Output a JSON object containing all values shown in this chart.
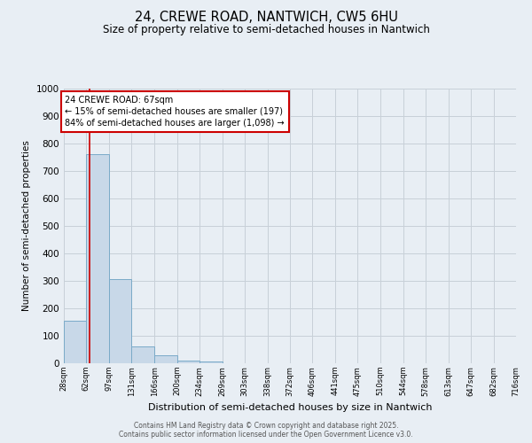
{
  "title": "24, CREWE ROAD, NANTWICH, CW5 6HU",
  "subtitle": "Size of property relative to semi-detached houses in Nantwich",
  "xlabel": "Distribution of semi-detached houses by size in Nantwich",
  "ylabel": "Number of semi-detached properties",
  "bins": [
    "28sqm",
    "62sqm",
    "97sqm",
    "131sqm",
    "166sqm",
    "200sqm",
    "234sqm",
    "269sqm",
    "303sqm",
    "338sqm",
    "372sqm",
    "406sqm",
    "441sqm",
    "475sqm",
    "510sqm",
    "544sqm",
    "578sqm",
    "613sqm",
    "647sqm",
    "682sqm",
    "716sqm"
  ],
  "bin_edges": [
    28,
    62,
    97,
    131,
    166,
    200,
    234,
    269,
    303,
    338,
    372,
    406,
    441,
    475,
    510,
    544,
    578,
    613,
    647,
    682,
    716
  ],
  "bar_heights": [
    155,
    760,
    305,
    60,
    30,
    10,
    5,
    0,
    0,
    0,
    0,
    0,
    0,
    0,
    0,
    0,
    0,
    0,
    0,
    0
  ],
  "bar_color": "#c8d8e8",
  "bar_edge_color": "#7aaac8",
  "grid_color": "#c8d0d8",
  "background_color": "#e8eef4",
  "property_size": 67,
  "red_line_color": "#cc0000",
  "annotation_text": "24 CREWE ROAD: 67sqm\n← 15% of semi-detached houses are smaller (197)\n84% of semi-detached houses are larger (1,098) →",
  "annotation_box_color": "#ffffff",
  "annotation_box_edge": "#cc0000",
  "ylim": [
    0,
    1000
  ],
  "yticks": [
    0,
    100,
    200,
    300,
    400,
    500,
    600,
    700,
    800,
    900,
    1000
  ],
  "footer_line1": "Contains HM Land Registry data © Crown copyright and database right 2025.",
  "footer_line2": "Contains public sector information licensed under the Open Government Licence v3.0."
}
